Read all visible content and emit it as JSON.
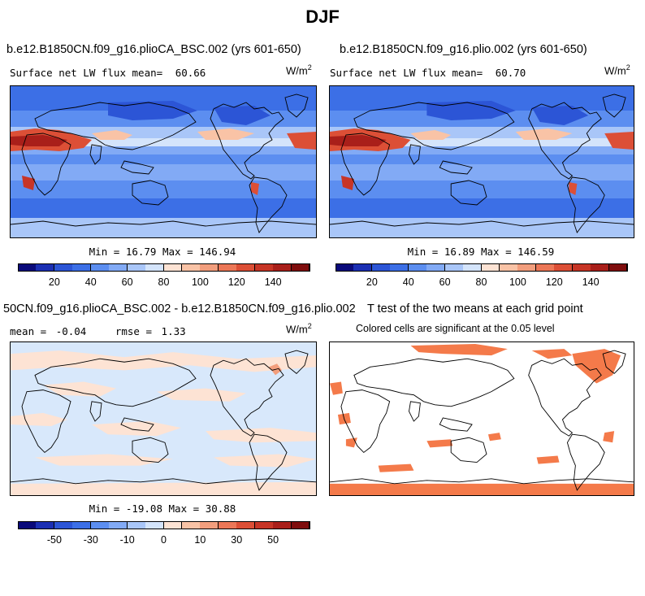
{
  "figure": {
    "title": "DJF"
  },
  "panels": [
    {
      "id": "panel-1",
      "title": "b.e12.B1850CN.f09_g16.plioCA_BSC.002 (yrs 601-650)",
      "subtitle_label": "Surface net LW flux mean=",
      "subtitle_value": "60.66",
      "units": "W/m",
      "units_exp": "2",
      "min_label": "Min =",
      "min_value": "16.79",
      "max_label": "Max =",
      "max_value": "146.94"
    },
    {
      "id": "panel-2",
      "title": "b.e12.B1850CN.f09_g16.plio.002 (yrs 601-650)",
      "subtitle_label": "Surface net LW flux mean=",
      "subtitle_value": "60.70",
      "units": "W/m",
      "units_exp": "2",
      "min_label": "Min =",
      "min_value": "16.89",
      "max_label": "Max =",
      "max_value": "146.59"
    },
    {
      "id": "panel-3",
      "title": "50CN.f09_g16.plioCA_BSC.002 - b.e12.B1850CN.f09_g16.plio.002",
      "mean_label": "mean =",
      "mean_value": "-0.04",
      "rmse_label": "rmse =",
      "rmse_value": "1.33",
      "units": "W/m",
      "units_exp": "2",
      "min_label": "Min =",
      "min_value": "-19.08",
      "max_label": "Max =",
      "max_value": "30.88"
    },
    {
      "id": "panel-4",
      "title": "T test of the two means at each grid point",
      "subtitle": "Colored cells are significant at the 0.05 level"
    }
  ],
  "chart_data": [
    {
      "type": "heatmap",
      "title": "b.e12.B1850CN.f09_g16.plioCA_BSC.002 (yrs 601-650)",
      "variable": "Surface net LW flux",
      "units": "W/m2",
      "mean": 60.66,
      "min": 16.79,
      "max": 146.94,
      "colorbar_ticks": [
        "20",
        "40",
        "60",
        "80",
        "100",
        "120",
        "140"
      ],
      "colorbar_range": [
        0,
        160
      ],
      "colorbar_levels": 16
    },
    {
      "type": "heatmap",
      "title": "b.e12.B1850CN.f09_g16.plio.002 (yrs 601-650)",
      "variable": "Surface net LW flux",
      "units": "W/m2",
      "mean": 60.7,
      "min": 16.89,
      "max": 146.59,
      "colorbar_ticks": [
        "20",
        "40",
        "60",
        "80",
        "100",
        "120",
        "140"
      ],
      "colorbar_range": [
        0,
        160
      ],
      "colorbar_levels": 16
    },
    {
      "type": "heatmap",
      "title": "50CN.f09_g16.plioCA_BSC.002 - b.e12.B1850CN.f09_g16.plio.002",
      "units": "W/m2",
      "mean": -0.04,
      "rmse": 1.33,
      "min": -19.08,
      "max": 30.88,
      "colorbar_ticks": [
        "-50",
        "-30",
        "-10",
        "0",
        "10",
        "30",
        "50"
      ],
      "colorbar_levels": 16
    },
    {
      "type": "heatmap",
      "title": "T test of the two means at each grid point",
      "note": "Colored cells are significant at the 0.05 level",
      "significance_level": 0.05
    }
  ],
  "colors": {
    "colorbar": [
      "#0a0a7a",
      "#1b2fb3",
      "#2c55d6",
      "#3c6fe6",
      "#5c8ef0",
      "#82aaf5",
      "#a9c6f8",
      "#d4e4fb",
      "#fde3d4",
      "#f9c3a6",
      "#f29e7d",
      "#ec7757",
      "#dc4f36",
      "#c73526",
      "#a91f1a",
      "#7f0d0d"
    ],
    "significant": "#f47a4a",
    "coast": "#000000"
  }
}
